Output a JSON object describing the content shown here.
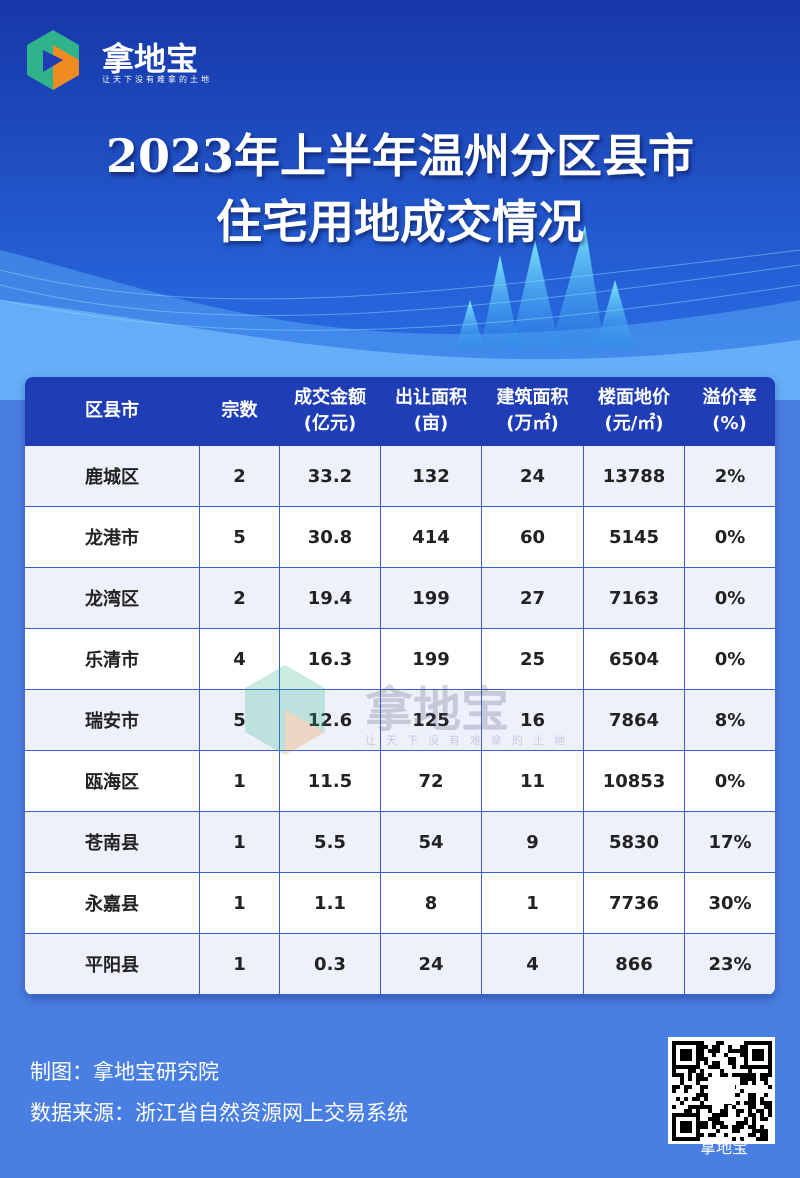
{
  "logo": {
    "name": "拿地宝",
    "slogan": "让天下没有难拿的土地"
  },
  "title": [
    "2023年上半年温州分区县市",
    "住宅用地成交情况"
  ],
  "table": {
    "headers": [
      [
        "区县市"
      ],
      [
        "宗数"
      ],
      [
        "成交金额",
        "(亿元)"
      ],
      [
        "出让面积",
        "(亩)"
      ],
      [
        "建筑面积",
        "(万㎡)"
      ],
      [
        "楼面地价",
        "(元/㎡)"
      ],
      [
        "溢价率",
        "(%)"
      ]
    ],
    "rows": [
      [
        "鹿城区",
        "2",
        "33.2",
        "132",
        "24",
        "13788",
        "2%"
      ],
      [
        "龙港市",
        "5",
        "30.8",
        "414",
        "60",
        "5145",
        "0%"
      ],
      [
        "龙湾区",
        "2",
        "19.4",
        "199",
        "27",
        "7163",
        "0%"
      ],
      [
        "乐清市",
        "4",
        "16.3",
        "199",
        "25",
        "6504",
        "0%"
      ],
      [
        "瑞安市",
        "5",
        "12.6",
        "125",
        "16",
        "7864",
        "8%"
      ],
      [
        "瓯海区",
        "1",
        "11.5",
        "72",
        "11",
        "10853",
        "0%"
      ],
      [
        "苍南县",
        "1",
        "5.5",
        "54",
        "9",
        "5830",
        "17%"
      ],
      [
        "永嘉县",
        "1",
        "1.1",
        "8",
        "1",
        "7736",
        "30%"
      ],
      [
        "平阳县",
        "1",
        "0.3",
        "24",
        "4",
        "866",
        "23%"
      ]
    ]
  },
  "watermark": {
    "name": "拿地宝",
    "slogan": "让天下没有难拿的土地"
  },
  "footer": {
    "credit": "制图：拿地宝研究院",
    "source": "数据来源：浙江省自然资源网上交易系统",
    "wechat": "拿地宝"
  }
}
